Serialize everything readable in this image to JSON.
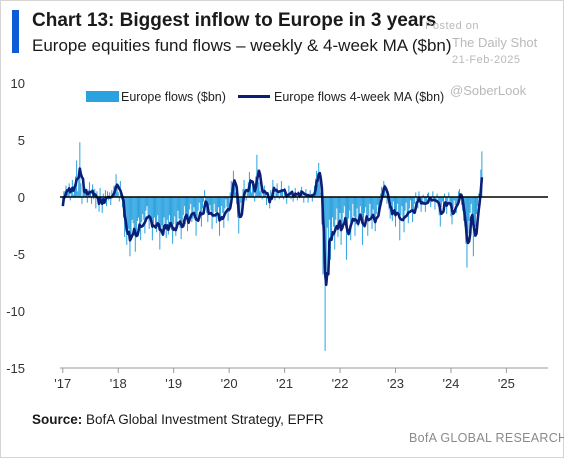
{
  "header": {
    "title": "Chart 13: Biggest inflow to Europe in 3 years",
    "subtitle": "Europe equities fund flows – weekly & 4-week MA ($bn)"
  },
  "watermark": {
    "posted_on": "Posted on",
    "site": "The Daily Shot",
    "date": "21-Feb-2025",
    "handle": "@SoberLook"
  },
  "footer": {
    "source_label": "Source:",
    "source_text": " BofA Global Investment Strategy, EPFR",
    "brand": "BofA GLOBAL RESEARCH"
  },
  "colors": {
    "weekly": "#2aa2e0",
    "ma": "#0b1f78",
    "accent": "#0d5bd6",
    "zero_line": "#000000"
  },
  "chart_data": {
    "type": "bar",
    "title": "Chart 13: Biggest inflow to Europe in 3 years",
    "subtitle": "Europe equities fund flows – weekly & 4-week MA ($bn)",
    "ylim": [
      -15,
      10
    ],
    "yticks": [
      10,
      5,
      0,
      -5,
      -10,
      -15
    ],
    "xlim": [
      2016.95,
      2025.75
    ],
    "xticks": [
      {
        "value": 2017,
        "label": "'17"
      },
      {
        "value": 2018,
        "label": "'18"
      },
      {
        "value": 2019,
        "label": "'19"
      },
      {
        "value": 2020,
        "label": "'20"
      },
      {
        "value": 2021,
        "label": "'21"
      },
      {
        "value": 2022,
        "label": "'22"
      },
      {
        "value": 2023,
        "label": "'23"
      },
      {
        "value": 2024,
        "label": "'24"
      },
      {
        "value": 2025,
        "label": "'25"
      }
    ],
    "grid": false,
    "legend_position": "top",
    "series": [
      {
        "name": "Europe flows ($bn)",
        "kind": "bar",
        "color": "#2aa2e0",
        "x_start": 2017.0,
        "x_step_weeks": 1,
        "values": [
          -0.8,
          0.5,
          0.5,
          1.0,
          0.3,
          0.5,
          1.2,
          -0.3,
          0.8,
          1.5,
          0.2,
          0.9,
          1.8,
          3.2,
          0.5,
          1.5,
          4.8,
          1.2,
          -0.6,
          1.0,
          0.4,
          0.8,
          0.2,
          -0.5,
          0.6,
          1.3,
          0.4,
          -0.6,
          1.1,
          -0.2,
          0.7,
          -1.0,
          0.5,
          -0.6,
          -1.3,
          0.8,
          -0.5,
          -1.4,
          0.3,
          -0.4,
          0.6,
          -0.8,
          0.5,
          -0.3,
          0.4,
          -0.7,
          0.6,
          0.3,
          1.0,
          0.4,
          2.0,
          0.9,
          0.4,
          -0.4,
          1.4,
          -0.2,
          -0.9,
          -1.8,
          -3.5,
          -2.2,
          -4.2,
          -3.0,
          -2.8,
          -5.2,
          -3.5,
          -2.0,
          -2.3,
          -3.4,
          -4.8,
          -3.2,
          -2.1,
          -1.8,
          -2.6,
          -3.8,
          -2.2,
          -1.5,
          -2.0,
          -3.2,
          -1.2,
          -0.8,
          -1.9,
          -2.8,
          -1.6,
          -2.2,
          -3.8,
          -2.4,
          -1.8,
          -2.7,
          -3.1,
          -1.6,
          -2.2,
          -4.6,
          -3.1,
          -2.5,
          -3.0,
          -1.8,
          -2.6,
          -3.6,
          -2.0,
          -3.3,
          -1.6,
          -2.1,
          -2.9,
          -4.1,
          -2.4,
          -1.7,
          -3.4,
          -2.8,
          -1.2,
          -1.9,
          -2.7,
          -3.7,
          -2.2,
          -1.6,
          -0.8,
          -2.4,
          -1.5,
          -3.0,
          -2.1,
          -1.1,
          -0.6,
          -2.2,
          -1.9,
          -0.9,
          -1.7,
          -3.4,
          -2.0,
          -1.2,
          -0.5,
          -1.8,
          -2.6,
          -1.0,
          -0.4,
          0.6,
          -0.8,
          -1.4,
          -2.2,
          -1.5,
          -0.7,
          -1.2,
          -2.8,
          -1.8,
          -0.6,
          -1.3,
          -2.3,
          -1.6,
          -0.9,
          -3.4,
          -2.0,
          -0.8,
          -1.4,
          -2.7,
          -1.0,
          -0.2,
          -0.9,
          -2.1,
          -1.3,
          0.4,
          1.4,
          0.6,
          2.3,
          1.5,
          0.4,
          -0.6,
          -1.8,
          -3.2,
          -1.4,
          -0.5,
          -0.9,
          0.7,
          1.5,
          0.5,
          -0.3,
          0.6,
          1.3,
          2.2,
          1.6,
          0.4,
          1.2,
          0.8,
          -0.4,
          1.8,
          3.7,
          2.4,
          1.3,
          0.5,
          1.0,
          -0.2,
          0.3,
          1.0,
          0.6,
          -0.7,
          0.4,
          -0.5,
          -1.0,
          0.6,
          0.3,
          1.5,
          0.8,
          -0.3,
          0.5,
          1.2,
          0.4,
          -0.2,
          0.6,
          1.4,
          0.5,
          -0.2,
          0.8,
          0.2,
          -0.6,
          0.3,
          1.0,
          0.4,
          -0.2,
          0.6,
          -0.4,
          0.2,
          0.8,
          0.3,
          -0.3,
          0.5,
          -0.1,
          0.6,
          0.9,
          0.2,
          -0.5,
          0.4,
          0.7,
          0.1,
          -0.5,
          0.2,
          0.6,
          0.2,
          -0.4,
          0.3,
          1.0,
          1.6,
          2.3,
          1.1,
          3.0,
          2.0,
          0.4,
          -2.4,
          -6.8,
          -4.0,
          -13.5,
          -6.5,
          -2.7,
          -4.4,
          -2.0,
          -5.5,
          -3.1,
          -1.8,
          -2.6,
          -4.6,
          -2.0,
          -1.0,
          -3.5,
          -2.5,
          -1.4,
          -4.2,
          -2.8,
          -1.4,
          -0.8,
          -2.4,
          -5.5,
          -3.2,
          -1.9,
          -1.2,
          -3.8,
          -2.1,
          -0.6,
          -1.7,
          -3.4,
          -2.4,
          -1.0,
          -2.6,
          -1.8,
          -0.8,
          -2.2,
          -4.2,
          -2.4,
          -1.4,
          -0.9,
          -2.1,
          -3.4,
          -1.7,
          -0.6,
          -1.8,
          -2.8,
          -1.1,
          -1.9,
          -3.0,
          -1.5,
          -0.7,
          -1.4,
          -0.6,
          0.3,
          0.9,
          0.3,
          1.4,
          1.1,
          0.2,
          -0.6,
          0.2,
          -1.1,
          -1.9,
          -0.9,
          -2.1,
          -0.4,
          -1.3,
          -2.6,
          -1.2,
          -0.6,
          -1.8,
          -3.8,
          -1.6,
          -0.8,
          -1.9,
          -3.1,
          -1.2,
          -0.5,
          -1.5,
          -2.3,
          -1.0,
          -0.3,
          -1.2,
          -2.2,
          -1.5,
          -0.6,
          0.4,
          -0.3,
          -1.0,
          0.5,
          -0.4,
          -1.3,
          -0.7,
          0.2,
          -0.5,
          -1.3,
          -0.6,
          0.3,
          0.4,
          -0.5,
          -0.9,
          -0.2,
          0.5,
          -0.4,
          -1.1,
          -0.3,
          0.3,
          -0.8,
          -1.6,
          -2.6,
          -0.9,
          -0.4,
          -1.2,
          0.3,
          -0.6,
          -1.5,
          -0.4,
          0.4,
          -0.8,
          -1.7,
          -2.4,
          -1.0,
          -0.3,
          -0.7,
          -1.4,
          -0.4,
          0.5,
          0.7,
          0.1,
          -0.7,
          -1.2,
          -2.1,
          -2.6,
          -4.1,
          -6.2,
          -3.2,
          -2.1,
          -1.4,
          -0.6,
          -2.2,
          -5.2,
          -3.5,
          -2.6,
          -1.5,
          -0.8,
          0.3,
          0.2,
          2.4,
          4.0
        ]
      },
      {
        "name": "Europe flows 4-week MA ($bn)",
        "kind": "line",
        "color": "#0b1f78"
      }
    ]
  }
}
